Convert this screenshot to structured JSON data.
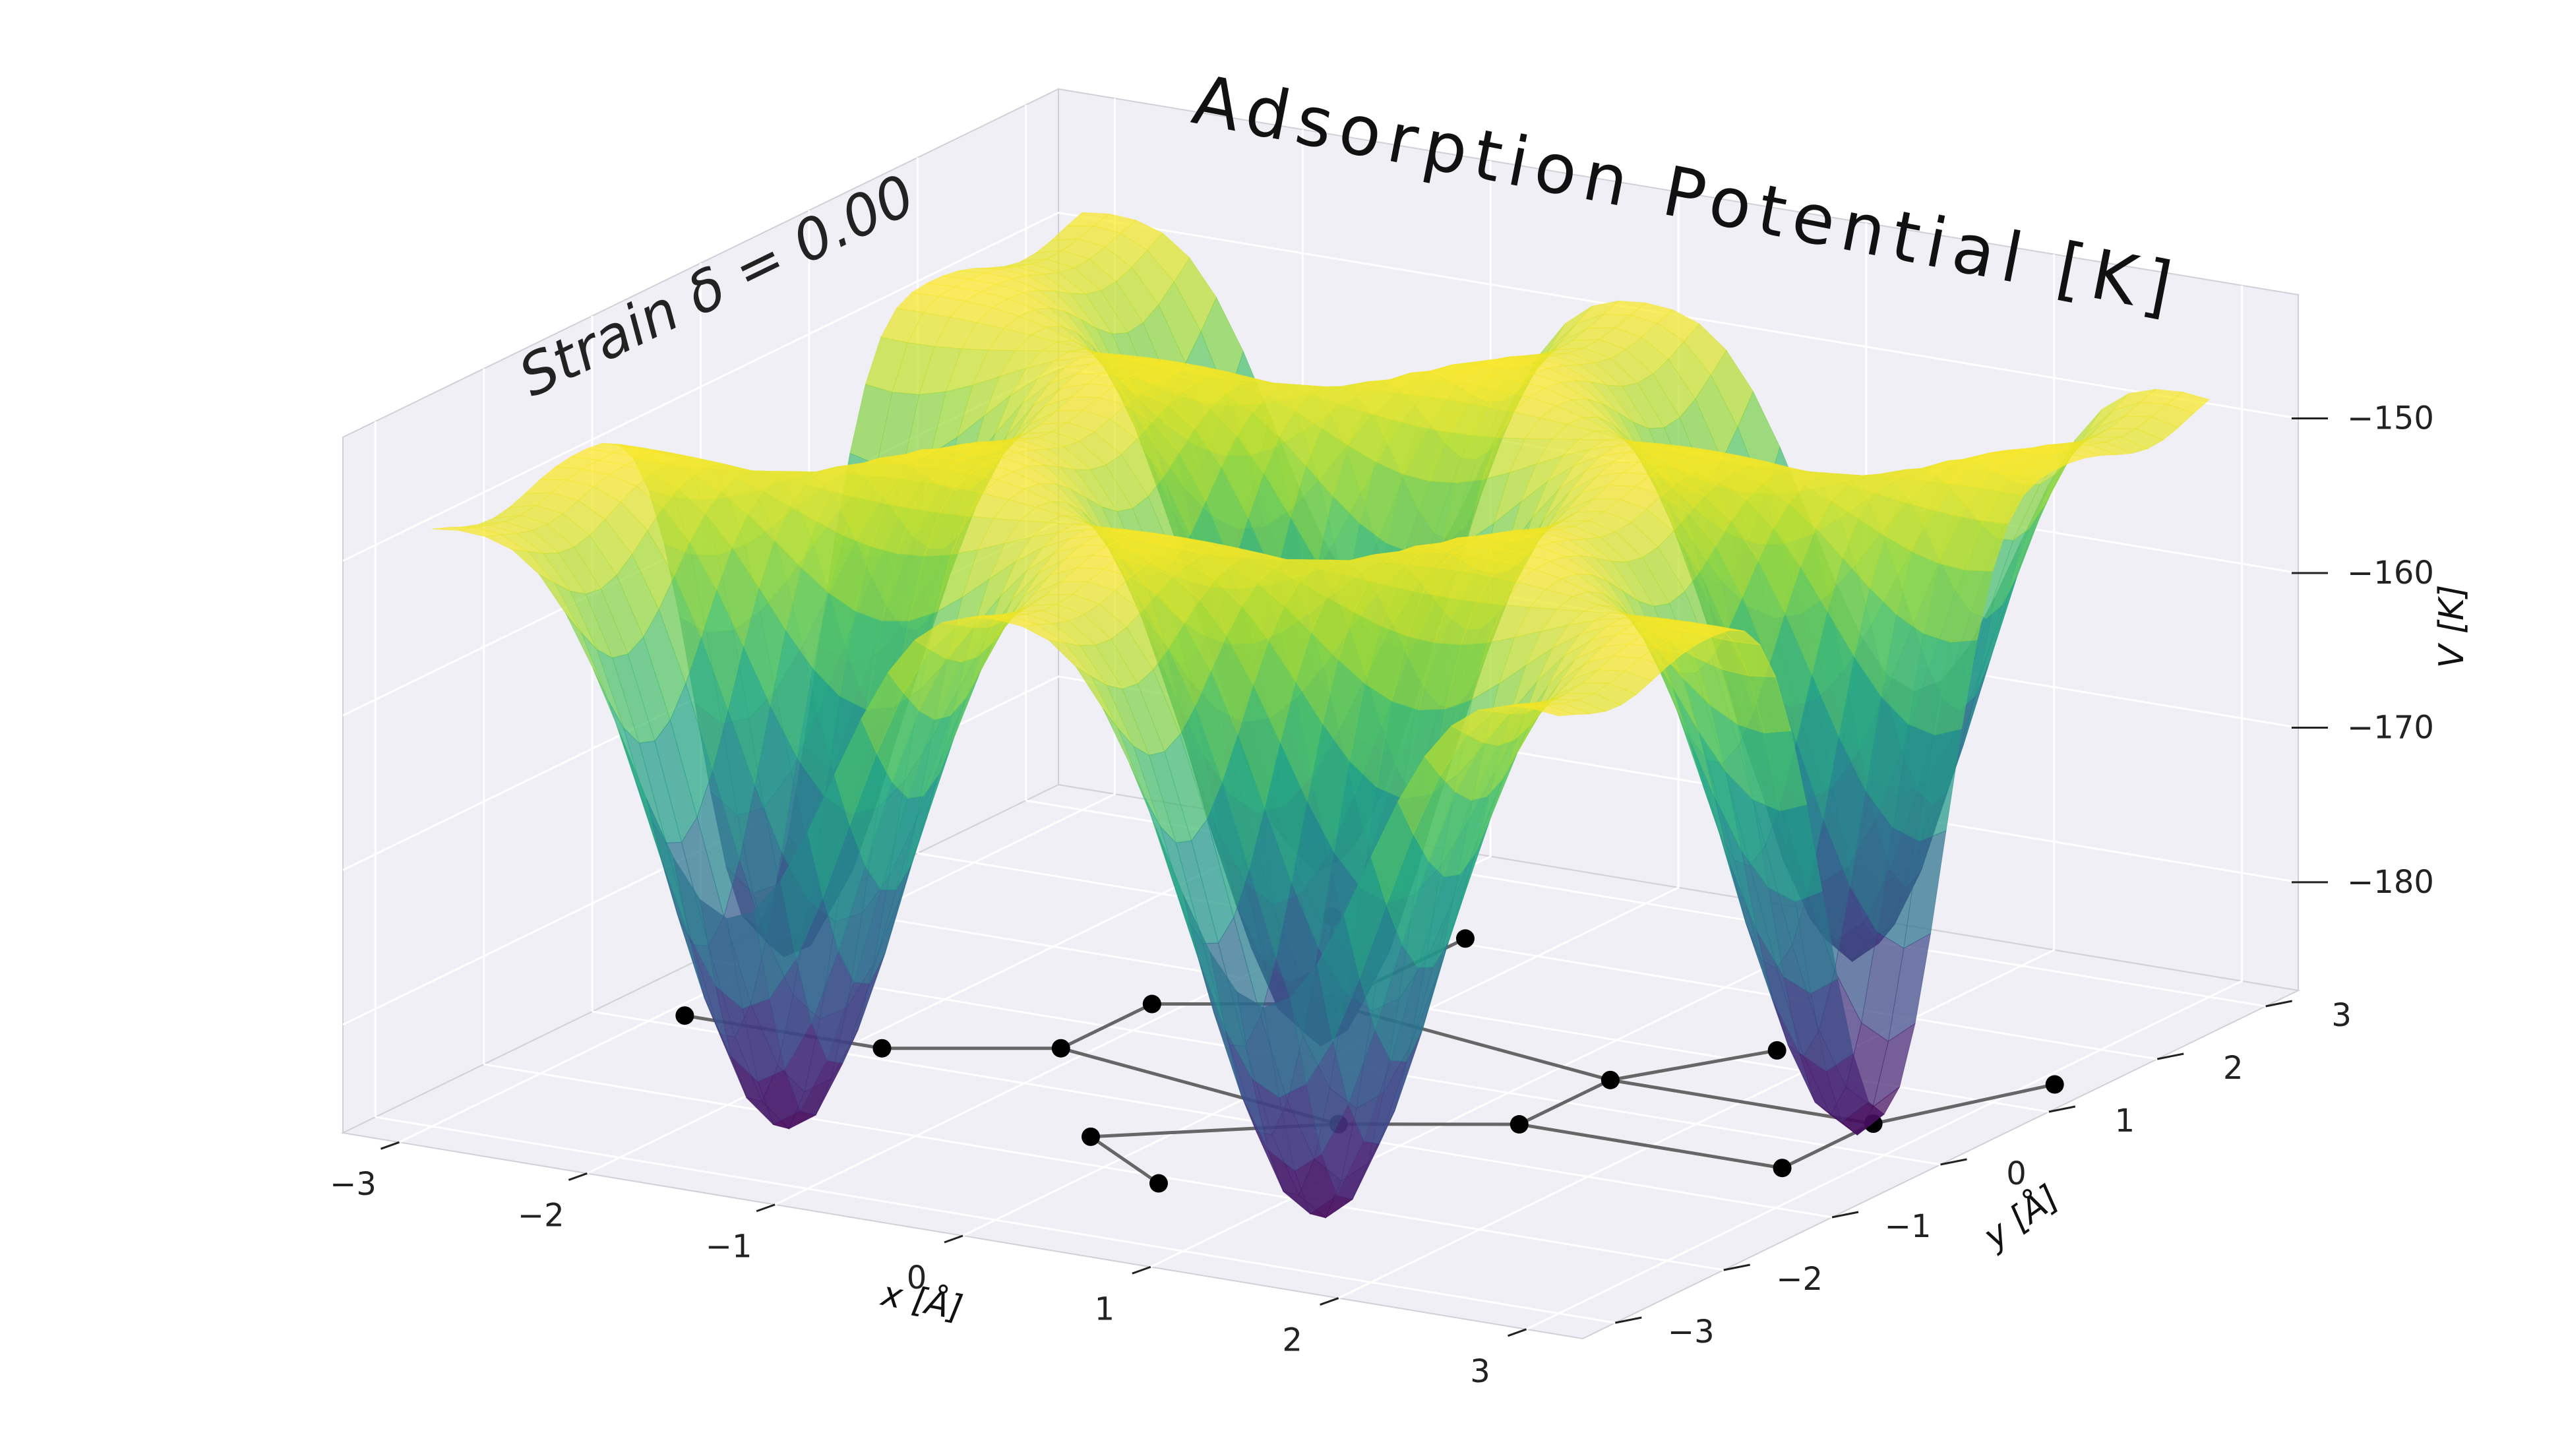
{
  "title": "Adsorption Potential [K]",
  "annotation": "Strain δ = 0.00",
  "chart_data": {
    "type": "surface3d",
    "title": "Adsorption Potential [K]",
    "annotation": "Strain δ = 0.00",
    "xlabel": "x [Å]",
    "ylabel": "y [Å]",
    "zlabel": "V [K]",
    "xlim": [
      -3.3,
      3.3
    ],
    "ylim": [
      -3.3,
      3.3
    ],
    "zlim": [
      -187,
      -142
    ],
    "x_ticks": [
      "−3",
      "−2",
      "−1",
      "0",
      "1",
      "2",
      "3"
    ],
    "y_ticks": [
      "−3",
      "−2",
      "−1",
      "0",
      "1",
      "2",
      "3"
    ],
    "z_ticks": [
      "−180",
      "−170",
      "−160",
      "−150"
    ],
    "colormap": "viridis",
    "surface": {
      "description": "hexagonal-lattice adsorption potential, minima at hexagon centres (~-186 K), maxima at carbon sites (~-148 K)",
      "z_min": -186,
      "z_max": -148
    },
    "lattice_atoms": [
      [
        -2.9,
        -0.84
      ],
      [
        -1.85,
        -0.84
      ],
      [
        -1.14,
        -0.42
      ],
      [
        -1.14,
        0.42
      ],
      [
        -0.43,
        0.84
      ],
      [
        -0.43,
        2.08
      ],
      [
        0.58,
        -0.84
      ],
      [
        1.3,
        -0.42
      ],
      [
        1.3,
        0.42
      ],
      [
        1.72,
        1.23
      ],
      [
        2.7,
        0.42
      ],
      [
        2.7,
        -0.42
      ],
      [
        -1.14,
        2.08
      ],
      [
        -0.3,
        -1.6
      ],
      [
        0.35,
        -2.1
      ],
      [
        3.1,
        1.4
      ]
    ],
    "lattice_bonds": [
      [
        0,
        1
      ],
      [
        1,
        2
      ],
      [
        2,
        3
      ],
      [
        3,
        4
      ],
      [
        4,
        5
      ],
      [
        2,
        6
      ],
      [
        6,
        7
      ],
      [
        7,
        8
      ],
      [
        8,
        4
      ],
      [
        8,
        9
      ],
      [
        7,
        11
      ],
      [
        11,
        10
      ],
      [
        10,
        8
      ],
      [
        12,
        4
      ],
      [
        13,
        6
      ],
      [
        14,
        13
      ],
      [
        10,
        15
      ]
    ],
    "grid": true,
    "pane_color": "#efeff5"
  }
}
